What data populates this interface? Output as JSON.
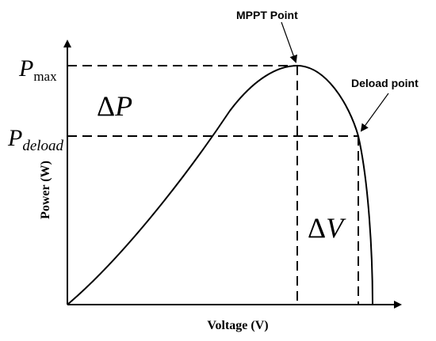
{
  "diagram": {
    "y_axis_label": "Power (W)",
    "x_axis_label": "Voltage (V)",
    "p_max": {
      "symbol": "P",
      "subscript": "max"
    },
    "p_deload": {
      "symbol": "P",
      "subscript": "deload"
    },
    "delta_p": {
      "symbol": "Δ",
      "variable": "P"
    },
    "delta_v": {
      "symbol": "Δ",
      "variable": "V"
    },
    "mppt_point": "MPPT Point",
    "deload_point": "Deload point"
  }
}
